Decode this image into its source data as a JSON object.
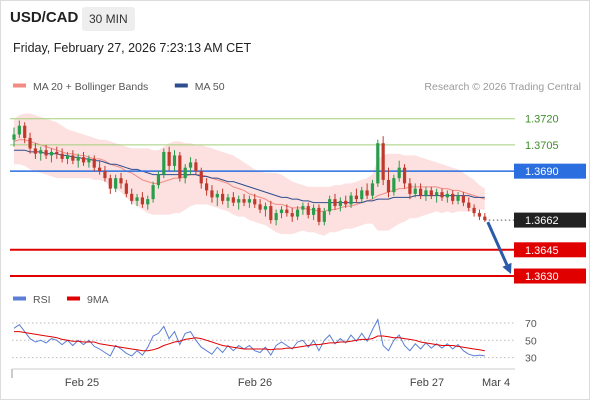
{
  "header": {
    "symbol": "USD/CAD",
    "timeframe": "30 MIN",
    "datetime": "Friday, February 27, 2026 7:23:13 AM CET"
  },
  "legend": {
    "items": [
      {
        "label": "MA 20 + Bollinger Bands",
        "color": "#f28b82"
      },
      {
        "label": "MA 50",
        "color": "#2e4d8c"
      }
    ],
    "copyright": "Research © 2026 Trading Central"
  },
  "rsi_legend": {
    "items": [
      {
        "label": "RSI",
        "color": "#5b7fd6"
      },
      {
        "label": "9MA",
        "color": "#e00000"
      }
    ]
  },
  "colors": {
    "bull": "#2a9d4a",
    "bear": "#c0392b",
    "resistance_line": "#a3cf7a",
    "pivot": "#2a6ee0",
    "support": "#e00000",
    "current_badge": "#222222",
    "bollinger_fill": "#fde0e0",
    "ma20": "#f28b82",
    "ma50": "#2e4d8c",
    "arrow": "#2a5aa8"
  },
  "chart_data": [
    {
      "type": "candlestick",
      "title": "USD/CAD 30 MIN",
      "x_ticks": [
        "Feb 25",
        "Feb 26",
        "Feb 27",
        "Mar 4"
      ],
      "ylim": [
        1.3622,
        1.3733
      ],
      "levels": [
        {
          "value": 1.372,
          "label": "1.3720",
          "kind": "resistance"
        },
        {
          "value": 1.3705,
          "label": "1.3705",
          "kind": "resistance"
        },
        {
          "value": 1.369,
          "label": "1.3690",
          "kind": "pivot"
        },
        {
          "value": 1.3662,
          "label": "1.3662",
          "kind": "current"
        },
        {
          "value": 1.3645,
          "label": "1.3645",
          "kind": "support"
        },
        {
          "value": 1.363,
          "label": "1.3630",
          "kind": "support"
        }
      ],
      "candles": [
        [
          1.3708,
          1.3715,
          1.3704,
          1.3711
        ],
        [
          1.3711,
          1.3719,
          1.3709,
          1.3716
        ],
        [
          1.3716,
          1.3718,
          1.3706,
          1.3709
        ],
        [
          1.3709,
          1.3712,
          1.37,
          1.3703
        ],
        [
          1.3703,
          1.3706,
          1.3697,
          1.37
        ],
        [
          1.37,
          1.3704,
          1.3696,
          1.3702
        ],
        [
          1.3702,
          1.3705,
          1.3697,
          1.3699
        ],
        [
          1.3699,
          1.3703,
          1.3695,
          1.3701
        ],
        [
          1.3701,
          1.3704,
          1.3697,
          1.37
        ],
        [
          1.37,
          1.3703,
          1.3695,
          1.3697
        ],
        [
          1.3697,
          1.3701,
          1.3694,
          1.3699
        ],
        [
          1.3699,
          1.3702,
          1.3694,
          1.3696
        ],
        [
          1.3696,
          1.37,
          1.3692,
          1.3698
        ],
        [
          1.3698,
          1.3701,
          1.3693,
          1.3695
        ],
        [
          1.3695,
          1.3699,
          1.3692,
          1.3697
        ],
        [
          1.3697,
          1.3699,
          1.369,
          1.3692
        ],
        [
          1.3692,
          1.3696,
          1.3688,
          1.369
        ],
        [
          1.369,
          1.3693,
          1.3684,
          1.3686
        ],
        [
          1.3686,
          1.3688,
          1.3677,
          1.368
        ],
        [
          1.368,
          1.3688,
          1.3678,
          1.3686
        ],
        [
          1.3686,
          1.3689,
          1.368,
          1.3683
        ],
        [
          1.3683,
          1.3685,
          1.3675,
          1.3677
        ],
        [
          1.3677,
          1.368,
          1.3671,
          1.3673
        ],
        [
          1.3673,
          1.3677,
          1.367,
          1.3675
        ],
        [
          1.3675,
          1.3678,
          1.3669,
          1.3671
        ],
        [
          1.3671,
          1.3676,
          1.3668,
          1.3674
        ],
        [
          1.3674,
          1.3684,
          1.3672,
          1.3682
        ],
        [
          1.3682,
          1.369,
          1.368,
          1.3688
        ],
        [
          1.3688,
          1.3703,
          1.3686,
          1.3701
        ],
        [
          1.3701,
          1.3704,
          1.369,
          1.3693
        ],
        [
          1.3693,
          1.3702,
          1.369,
          1.3699
        ],
        [
          1.3699,
          1.3701,
          1.3684,
          1.3686
        ],
        [
          1.3686,
          1.3694,
          1.3683,
          1.3692
        ],
        [
          1.3692,
          1.3698,
          1.3688,
          1.3695
        ],
        [
          1.3695,
          1.3697,
          1.3688,
          1.369
        ],
        [
          1.369,
          1.3692,
          1.368,
          1.3683
        ],
        [
          1.3683,
          1.3686,
          1.3676,
          1.3679
        ],
        [
          1.3679,
          1.3682,
          1.3672,
          1.3675
        ],
        [
          1.3675,
          1.3679,
          1.367,
          1.3677
        ],
        [
          1.3677,
          1.368,
          1.3671,
          1.3673
        ],
        [
          1.3673,
          1.3677,
          1.3669,
          1.3675
        ],
        [
          1.3675,
          1.3678,
          1.367,
          1.3672
        ],
        [
          1.3672,
          1.3676,
          1.3668,
          1.3674
        ],
        [
          1.3674,
          1.3677,
          1.367,
          1.3672
        ],
        [
          1.3672,
          1.3676,
          1.3669,
          1.3674
        ],
        [
          1.3674,
          1.3677,
          1.3669,
          1.3671
        ],
        [
          1.3671,
          1.3674,
          1.3666,
          1.3668
        ],
        [
          1.3668,
          1.3672,
          1.3664,
          1.367
        ],
        [
          1.367,
          1.3673,
          1.366,
          1.3662
        ],
        [
          1.3662,
          1.3668,
          1.3659,
          1.3666
        ],
        [
          1.3666,
          1.367,
          1.3663,
          1.3668
        ],
        [
          1.3668,
          1.3671,
          1.3664,
          1.3666
        ],
        [
          1.3666,
          1.3669,
          1.3661,
          1.3664
        ],
        [
          1.3664,
          1.367,
          1.3662,
          1.3668
        ],
        [
          1.3668,
          1.3672,
          1.3665,
          1.367
        ],
        [
          1.367,
          1.3672,
          1.3663,
          1.3665
        ],
        [
          1.3665,
          1.3671,
          1.3662,
          1.3669
        ],
        [
          1.3669,
          1.3671,
          1.3659,
          1.3661
        ],
        [
          1.3661,
          1.3669,
          1.3659,
          1.3667
        ],
        [
          1.3667,
          1.3676,
          1.3665,
          1.3674
        ],
        [
          1.3674,
          1.3677,
          1.3668,
          1.367
        ],
        [
          1.367,
          1.3675,
          1.3667,
          1.3673
        ],
        [
          1.3673,
          1.3676,
          1.3669,
          1.3671
        ],
        [
          1.3671,
          1.3678,
          1.3669,
          1.3676
        ],
        [
          1.3676,
          1.368,
          1.3672,
          1.3674
        ],
        [
          1.3674,
          1.3681,
          1.3672,
          1.3679
        ],
        [
          1.3679,
          1.3683,
          1.3674,
          1.3676
        ],
        [
          1.3676,
          1.3685,
          1.3674,
          1.3683
        ],
        [
          1.3683,
          1.3708,
          1.3681,
          1.3706
        ],
        [
          1.3706,
          1.371,
          1.3682,
          1.3685
        ],
        [
          1.3685,
          1.3692,
          1.3675,
          1.3678
        ],
        [
          1.3678,
          1.3688,
          1.3676,
          1.3686
        ],
        [
          1.3686,
          1.3696,
          1.3684,
          1.3692
        ],
        [
          1.3692,
          1.3694,
          1.368,
          1.3683
        ],
        [
          1.3683,
          1.3686,
          1.3674,
          1.3677
        ],
        [
          1.3677,
          1.3683,
          1.3675,
          1.368
        ],
        [
          1.368,
          1.3683,
          1.3674,
          1.3676
        ],
        [
          1.3676,
          1.3681,
          1.3673,
          1.3679
        ],
        [
          1.3679,
          1.3681,
          1.3674,
          1.3676
        ],
        [
          1.3676,
          1.368,
          1.3672,
          1.3678
        ],
        [
          1.3678,
          1.368,
          1.3673,
          1.3675
        ],
        [
          1.3675,
          1.3679,
          1.3672,
          1.3677
        ],
        [
          1.3677,
          1.3679,
          1.3671,
          1.3673
        ],
        [
          1.3673,
          1.3678,
          1.3671,
          1.3676
        ],
        [
          1.3676,
          1.3678,
          1.367,
          1.3672
        ],
        [
          1.3672,
          1.3675,
          1.3667,
          1.3669
        ],
        [
          1.3669,
          1.3671,
          1.3664,
          1.3666
        ],
        [
          1.3666,
          1.3668,
          1.3662,
          1.3664
        ],
        [
          1.3664,
          1.3666,
          1.3661,
          1.3662
        ]
      ],
      "ma20": [
        1.3707,
        1.3708,
        1.3708,
        1.3707,
        1.3706,
        1.3705,
        1.3704,
        1.3703,
        1.3702,
        1.3701,
        1.37,
        1.37,
        1.3699,
        1.3699,
        1.3698,
        1.3697,
        1.3697,
        1.3696,
        1.3694,
        1.3693,
        1.3692,
        1.369,
        1.3689,
        1.3687,
        1.3685,
        1.3684,
        1.3683,
        1.3683,
        1.3684,
        1.3685,
        1.3686,
        1.3686,
        1.3687,
        1.3688,
        1.3688,
        1.3688,
        1.3687,
        1.3686,
        1.3685,
        1.3684,
        1.3683,
        1.3681,
        1.368,
        1.3679,
        1.3677,
        1.3676,
        1.3675,
        1.3674,
        1.3672,
        1.3671,
        1.3671,
        1.367,
        1.3669,
        1.3669,
        1.3669,
        1.3668,
        1.3668,
        1.3667,
        1.3667,
        1.3668,
        1.3668,
        1.3669,
        1.367,
        1.367,
        1.3671,
        1.3672,
        1.3673,
        1.3674,
        1.3676,
        1.3677,
        1.3678,
        1.3679,
        1.368,
        1.368,
        1.3681,
        1.3681,
        1.3681,
        1.3681,
        1.3681,
        1.3681,
        1.368,
        1.368,
        1.3679,
        1.3679,
        1.3678,
        1.3677,
        1.3676,
        1.3675,
        1.3674
      ],
      "bb_upper": [
        1.372,
        1.3722,
        1.3723,
        1.3723,
        1.3722,
        1.3721,
        1.372,
        1.3719,
        1.3718,
        1.3716,
        1.3714,
        1.3713,
        1.3712,
        1.3711,
        1.371,
        1.3709,
        1.3708,
        1.3708,
        1.3707,
        1.3706,
        1.3705,
        1.3704,
        1.3703,
        1.3703,
        1.3703,
        1.3703,
        1.3702,
        1.3702,
        1.3704,
        1.3706,
        1.3707,
        1.3707,
        1.3706,
        1.3706,
        1.3705,
        1.3705,
        1.3704,
        1.3703,
        1.3702,
        1.3701,
        1.37,
        1.3699,
        1.3697,
        1.3695,
        1.3693,
        1.3691,
        1.369,
        1.3689,
        1.3689,
        1.3689,
        1.3688,
        1.3686,
        1.3684,
        1.3683,
        1.3682,
        1.3681,
        1.3681,
        1.3681,
        1.3681,
        1.3681,
        1.3682,
        1.3682,
        1.3683,
        1.3683,
        1.3684,
        1.3685,
        1.3686,
        1.3688,
        1.3697,
        1.3699,
        1.37,
        1.37,
        1.37,
        1.3699,
        1.3699,
        1.3699,
        1.3698,
        1.3697,
        1.3696,
        1.3695,
        1.3694,
        1.3693,
        1.3692,
        1.3691,
        1.3689,
        1.3687,
        1.3685,
        1.3682,
        1.368
      ],
      "bb_lower": [
        1.3694,
        1.3694,
        1.3693,
        1.3691,
        1.369,
        1.3689,
        1.3688,
        1.3687,
        1.3686,
        1.3686,
        1.3686,
        1.3686,
        1.3686,
        1.3686,
        1.3686,
        1.3685,
        1.3685,
        1.3684,
        1.3681,
        1.368,
        1.3678,
        1.3675,
        1.3672,
        1.367,
        1.3668,
        1.3666,
        1.3665,
        1.3665,
        1.3665,
        1.3665,
        1.3666,
        1.3666,
        1.3668,
        1.367,
        1.3671,
        1.3671,
        1.3671,
        1.367,
        1.3669,
        1.3668,
        1.3667,
        1.3665,
        1.3664,
        1.3664,
        1.3662,
        1.3661,
        1.366,
        1.3659,
        1.3657,
        1.3655,
        1.3654,
        1.3654,
        1.3654,
        1.3655,
        1.3656,
        1.3655,
        1.3655,
        1.3654,
        1.3653,
        1.3655,
        1.3655,
        1.3656,
        1.3657,
        1.3657,
        1.3658,
        1.3659,
        1.366,
        1.366,
        1.3656,
        1.3656,
        1.3656,
        1.3658,
        1.366,
        1.3661,
        1.3663,
        1.3663,
        1.3664,
        1.3665,
        1.3666,
        1.3667,
        1.3666,
        1.3667,
        1.3666,
        1.3667,
        1.3667,
        1.3667,
        1.3667,
        1.3668,
        1.3668
      ],
      "ma50": [
        1.3702,
        1.3702,
        1.3702,
        1.3701,
        1.3701,
        1.3701,
        1.37,
        1.37,
        1.37,
        1.3699,
        1.3699,
        1.3698,
        1.3698,
        1.3697,
        1.3697,
        1.3696,
        1.3696,
        1.3695,
        1.3694,
        1.3694,
        1.3693,
        1.3692,
        1.3691,
        1.3691,
        1.369,
        1.3689,
        1.3688,
        1.3688,
        1.3688,
        1.3688,
        1.3688,
        1.3688,
        1.3688,
        1.3688,
        1.3688,
        1.3687,
        1.3687,
        1.3686,
        1.3686,
        1.3685,
        1.3684,
        1.3684,
        1.3683,
        1.3682,
        1.3681,
        1.368,
        1.3679,
        1.3678,
        1.3677,
        1.3676,
        1.3675,
        1.3675,
        1.3674,
        1.3674,
        1.3673,
        1.3673,
        1.3672,
        1.3672,
        1.3672,
        1.3672,
        1.3672,
        1.3672,
        1.3672,
        1.3672,
        1.3672,
        1.3672,
        1.3673,
        1.3673,
        1.3674,
        1.3674,
        1.3674,
        1.3675,
        1.3675,
        1.3675,
        1.3675,
        1.3676,
        1.3676,
        1.3676,
        1.3676,
        1.3676,
        1.3676,
        1.3676,
        1.3676,
        1.3676,
        1.3676,
        1.3676,
        1.3675,
        1.3675,
        1.3675
      ],
      "forecast": {
        "from": 1.3662,
        "to": 1.363
      }
    },
    {
      "type": "line",
      "title": "RSI",
      "ylim": [
        25,
        78
      ],
      "y_ticks": [
        70,
        50,
        30
      ],
      "series": [
        {
          "name": "RSI",
          "values": [
            64,
            68,
            60,
            52,
            48,
            50,
            47,
            52,
            50,
            45,
            50,
            44,
            50,
            45,
            50,
            43,
            40,
            36,
            32,
            44,
            40,
            35,
            32,
            38,
            33,
            42,
            55,
            58,
            66,
            52,
            60,
            45,
            58,
            60,
            50,
            42,
            38,
            34,
            42,
            36,
            44,
            38,
            44,
            40,
            44,
            38,
            36,
            42,
            33,
            44,
            48,
            44,
            40,
            48,
            50,
            42,
            50,
            38,
            50,
            56,
            46,
            52,
            47,
            56,
            49,
            58,
            49,
            62,
            74,
            44,
            38,
            50,
            56,
            44,
            38,
            46,
            40,
            47,
            41,
            46,
            41,
            46,
            40,
            45,
            38,
            34,
            32,
            33,
            32
          ]
        },
        {
          "name": "9MA",
          "values": [
            60,
            60,
            59,
            58,
            57,
            56,
            55,
            54,
            53,
            51,
            50,
            49,
            49,
            48,
            48,
            48,
            46,
            45,
            44,
            43,
            42,
            41,
            40,
            39,
            38,
            38,
            39,
            41,
            44,
            46,
            48,
            49,
            51,
            52,
            53,
            52,
            50,
            48,
            46,
            44,
            43,
            42,
            41,
            40,
            40,
            40,
            40,
            40,
            39,
            40,
            40,
            41,
            41,
            42,
            43,
            44,
            45,
            45,
            46,
            47,
            47,
            48,
            48,
            49,
            50,
            51,
            51,
            52,
            55,
            55,
            54,
            53,
            53,
            52,
            51,
            50,
            48,
            47,
            46,
            45,
            44,
            44,
            44,
            43,
            42,
            41,
            40,
            39,
            38
          ]
        }
      ]
    }
  ]
}
